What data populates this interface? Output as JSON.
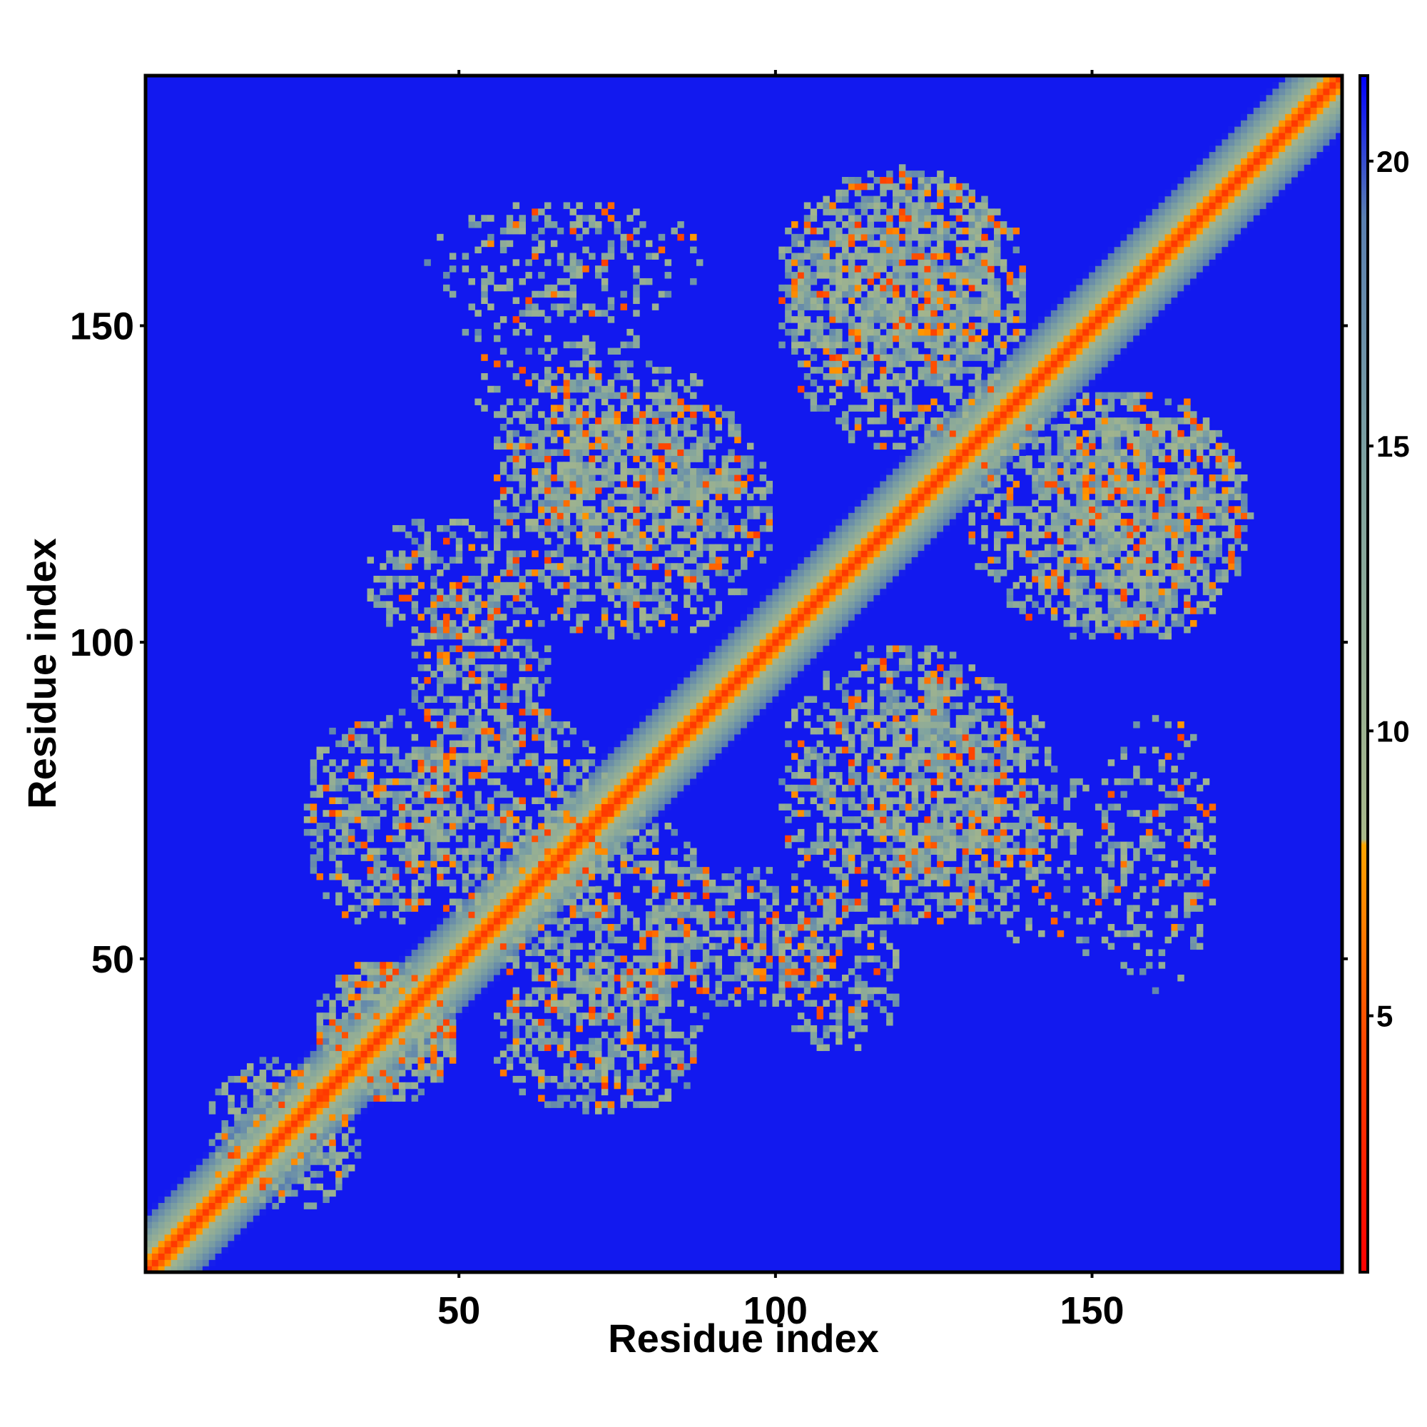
{
  "chart_data": {
    "type": "heatmap",
    "title": "",
    "xlabel": "Residue index",
    "ylabel": "Residue index",
    "xlim": [
      1,
      189
    ],
    "ylim": [
      1,
      189
    ],
    "x_ticks": [
      50,
      100,
      150
    ],
    "y_ticks": [
      50,
      100,
      150
    ],
    "colorbar": {
      "ticks": [
        5,
        10,
        15,
        20
      ],
      "range": [
        0.5,
        21.5
      ],
      "stops": [
        {
          "value": 0.5,
          "color": "#ff0000"
        },
        {
          "value": 4.5,
          "color": "#ff4500"
        },
        {
          "value": 8.0,
          "color": "#ffa500"
        },
        {
          "value": 8.1,
          "color": "#a8b88a"
        },
        {
          "value": 14.5,
          "color": "#7fa3a0"
        },
        {
          "value": 19.0,
          "color": "#5a7fb0"
        },
        {
          "value": 21.5,
          "color": "#0000ff"
        }
      ]
    },
    "background_value": 21,
    "diagonal_band": {
      "core_distance": 3.8,
      "half_width": 9
    },
    "contact_regions": [
      {
        "x_range": [
          27,
          50
        ],
        "y_range": [
          27,
          50
        ],
        "density": 0.6
      },
      {
        "x_range": [
          42,
          65
        ],
        "y_range": [
          80,
          110
        ],
        "density": 0.5
      },
      {
        "x_range": [
          55,
          95
        ],
        "y_range": [
          115,
          145
        ],
        "density": 0.5
      },
      {
        "x_range": [
          45,
          90
        ],
        "y_range": [
          150,
          170
        ],
        "density": 0.25
      },
      {
        "x_range": [
          100,
          140
        ],
        "y_range": [
          140,
          175
        ],
        "density": 0.55
      },
      {
        "x_range": [
          130,
          175
        ],
        "y_range": [
          100,
          140
        ],
        "density": 0.55
      },
      {
        "x_range": [
          100,
          140
        ],
        "y_range": [
          55,
          100
        ],
        "density": 0.55
      },
      {
        "x_range": [
          55,
          90
        ],
        "y_range": [
          40,
          75
        ],
        "density": 0.55
      },
      {
        "x_range": [
          25,
          50
        ],
        "y_range": [
          55,
          90
        ],
        "density": 0.5
      },
      {
        "x_range": [
          10,
          35
        ],
        "y_range": [
          10,
          35
        ],
        "density": 0.35
      },
      {
        "x_range": [
          100,
          120
        ],
        "y_range": [
          35,
          60
        ],
        "density": 0.4
      },
      {
        "x_range": [
          130,
          170
        ],
        "y_range": [
          50,
          80
        ],
        "density": 0.2
      }
    ]
  }
}
